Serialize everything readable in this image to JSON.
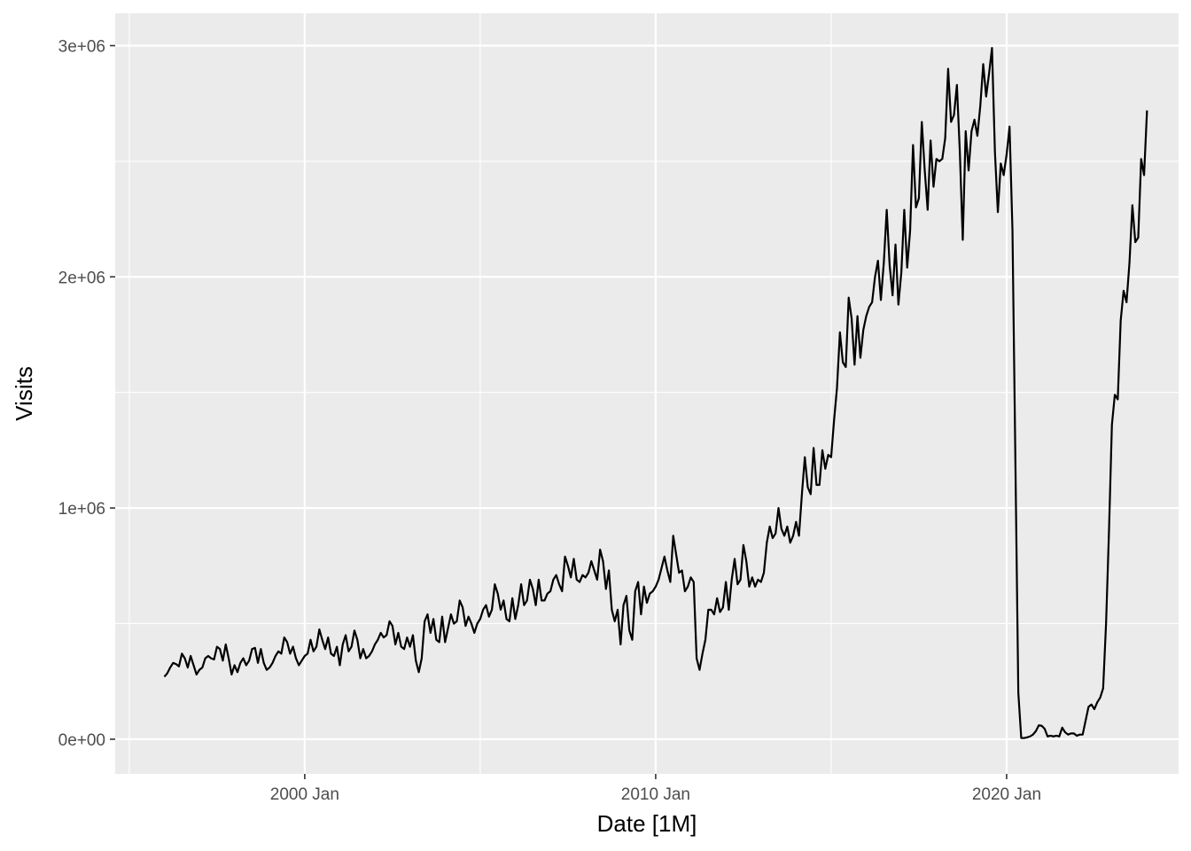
{
  "chart_data": {
    "type": "line",
    "title": "",
    "xlabel": "Date [1M]",
    "ylabel": "Visits",
    "x_tick_labels": [
      "2000 Jan",
      "2010 Jan",
      "2020 Jan"
    ],
    "y_tick_labels": [
      "0e+00",
      "1e+06",
      "2e+06",
      "3e+06"
    ],
    "y_ticks": [
      0,
      1000000,
      2000000,
      3000000
    ],
    "x_ticks": [
      2000.0,
      2010.0,
      2020.0
    ],
    "xlim": [
      1994.6,
      2024.9
    ],
    "ylim": [
      -150000,
      3140000
    ],
    "grid": true,
    "line_color": "#000000",
    "panel_background": "#ebebeb",
    "grid_color": "#ffffff",
    "series": [
      {
        "x_start": "1996-01",
        "frequency": "monthly",
        "values": [
          270000,
          285000,
          310000,
          330000,
          325000,
          315000,
          370000,
          350000,
          310000,
          360000,
          320000,
          280000,
          300000,
          310000,
          350000,
          360000,
          350000,
          345000,
          400000,
          390000,
          340000,
          410000,
          350000,
          280000,
          320000,
          290000,
          330000,
          350000,
          320000,
          340000,
          390000,
          395000,
          330000,
          390000,
          330000,
          300000,
          310000,
          330000,
          360000,
          380000,
          370000,
          440000,
          420000,
          370000,
          400000,
          350000,
          320000,
          340000,
          360000,
          370000,
          430000,
          380000,
          400000,
          475000,
          430000,
          390000,
          440000,
          370000,
          360000,
          400000,
          320000,
          410000,
          450000,
          380000,
          400000,
          470000,
          430000,
          350000,
          390000,
          350000,
          360000,
          380000,
          410000,
          430000,
          460000,
          440000,
          450000,
          510000,
          490000,
          410000,
          460000,
          400000,
          390000,
          440000,
          400000,
          450000,
          340000,
          290000,
          350000,
          510000,
          540000,
          460000,
          520000,
          430000,
          420000,
          530000,
          420000,
          480000,
          540000,
          500000,
          510000,
          600000,
          570000,
          490000,
          530000,
          500000,
          460000,
          500000,
          520000,
          560000,
          580000,
          530000,
          560000,
          670000,
          630000,
          560000,
          600000,
          520000,
          510000,
          610000,
          520000,
          580000,
          670000,
          580000,
          600000,
          690000,
          650000,
          580000,
          690000,
          600000,
          600000,
          630000,
          640000,
          690000,
          710000,
          670000,
          640000,
          790000,
          750000,
          700000,
          780000,
          690000,
          680000,
          710000,
          700000,
          720000,
          770000,
          730000,
          690000,
          820000,
          770000,
          650000,
          730000,
          560000,
          510000,
          560000,
          410000,
          580000,
          620000,
          470000,
          430000,
          640000,
          680000,
          540000,
          660000,
          590000,
          630000,
          640000,
          660000,
          690000,
          740000,
          790000,
          730000,
          680000,
          880000,
          800000,
          720000,
          730000,
          640000,
          660000,
          700000,
          680000,
          350000,
          300000,
          370000,
          430000,
          560000,
          560000,
          540000,
          610000,
          550000,
          570000,
          680000,
          560000,
          690000,
          780000,
          670000,
          690000,
          840000,
          770000,
          660000,
          700000,
          660000,
          690000,
          680000,
          720000,
          850000,
          920000,
          870000,
          890000,
          1000000,
          910000,
          880000,
          920000,
          850000,
          880000,
          940000,
          880000,
          1060000,
          1220000,
          1090000,
          1060000,
          1260000,
          1100000,
          1100000,
          1250000,
          1170000,
          1230000,
          1220000,
          1380000,
          1520000,
          1760000,
          1630000,
          1610000,
          1910000,
          1820000,
          1620000,
          1830000,
          1650000,
          1770000,
          1830000,
          1870000,
          1890000,
          2000000,
          2070000,
          1900000,
          2060000,
          2290000,
          2050000,
          1920000,
          2140000,
          1880000,
          2020000,
          2290000,
          2040000,
          2200000,
          2570000,
          2300000,
          2340000,
          2670000,
          2460000,
          2290000,
          2590000,
          2390000,
          2510000,
          2500000,
          2510000,
          2600000,
          2900000,
          2670000,
          2700000,
          2830000,
          2540000,
          2160000,
          2630000,
          2460000,
          2630000,
          2680000,
          2610000,
          2740000,
          2920000,
          2780000,
          2880000,
          2990000,
          2540000,
          2280000,
          2490000,
          2440000,
          2530000,
          2650000,
          2200000,
          1200000,
          200000,
          5000,
          5000,
          8000,
          12000,
          20000,
          35000,
          60000,
          58000,
          45000,
          12000,
          15000,
          12000,
          15000,
          12000,
          50000,
          30000,
          20000,
          25000,
          25000,
          15000,
          20000,
          20000,
          80000,
          140000,
          150000,
          130000,
          160000,
          180000,
          220000,
          500000,
          900000,
          1360000,
          1490000,
          1470000,
          1810000,
          1940000,
          1890000,
          2060000,
          2310000,
          2150000,
          2170000,
          2510000,
          2440000,
          2720000
        ]
      }
    ]
  }
}
